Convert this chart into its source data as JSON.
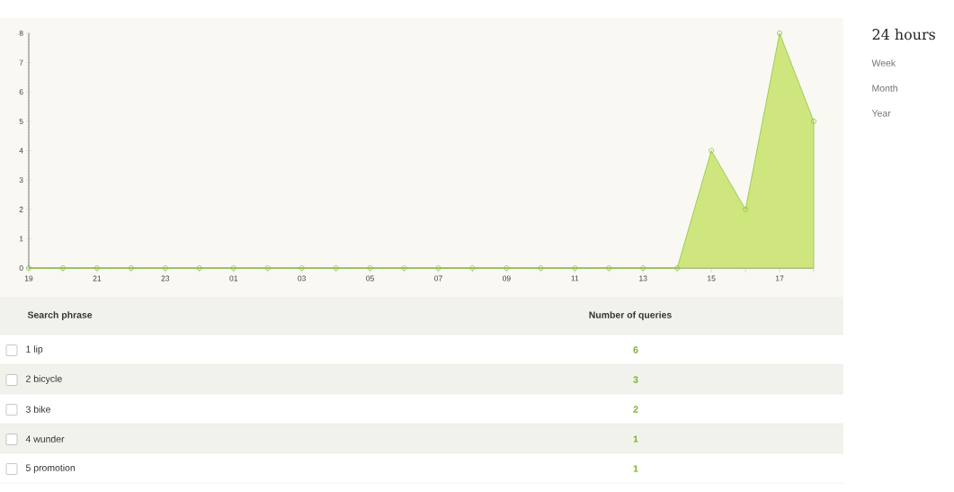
{
  "chart_data": [
    {
      "type": "area",
      "categories": [
        "19",
        null,
        "21",
        null,
        "23",
        null,
        "01",
        null,
        "03",
        null,
        "05",
        null,
        "07",
        null,
        "09",
        null,
        "11",
        null,
        "13",
        null,
        "15",
        null,
        "17",
        null
      ],
      "values": [
        0,
        0,
        0,
        0,
        0,
        0,
        0,
        0,
        0,
        0,
        0,
        0,
        0,
        0,
        0,
        0,
        0,
        0,
        0,
        0,
        4,
        2,
        8,
        5
      ],
      "color": "#8cc43c",
      "marker": "circle",
      "ylim": [
        0,
        8
      ],
      "yticks": [
        0,
        1,
        2,
        3,
        4,
        5,
        6,
        7,
        8
      ],
      "annotations": [
        "24 hours",
        "Week",
        "Month",
        "Year"
      ]
    },
    {
      "type": "other",
      "xlabel": "Search phrase",
      "ylabel": "Number of queries",
      "categories": [
        "1 lip",
        "2 bicycle",
        "3 bike",
        "4 wunder",
        "5 promotion"
      ],
      "values": [
        6,
        3,
        2,
        1,
        1
      ],
      "data_labels": true
    }
  ]
}
